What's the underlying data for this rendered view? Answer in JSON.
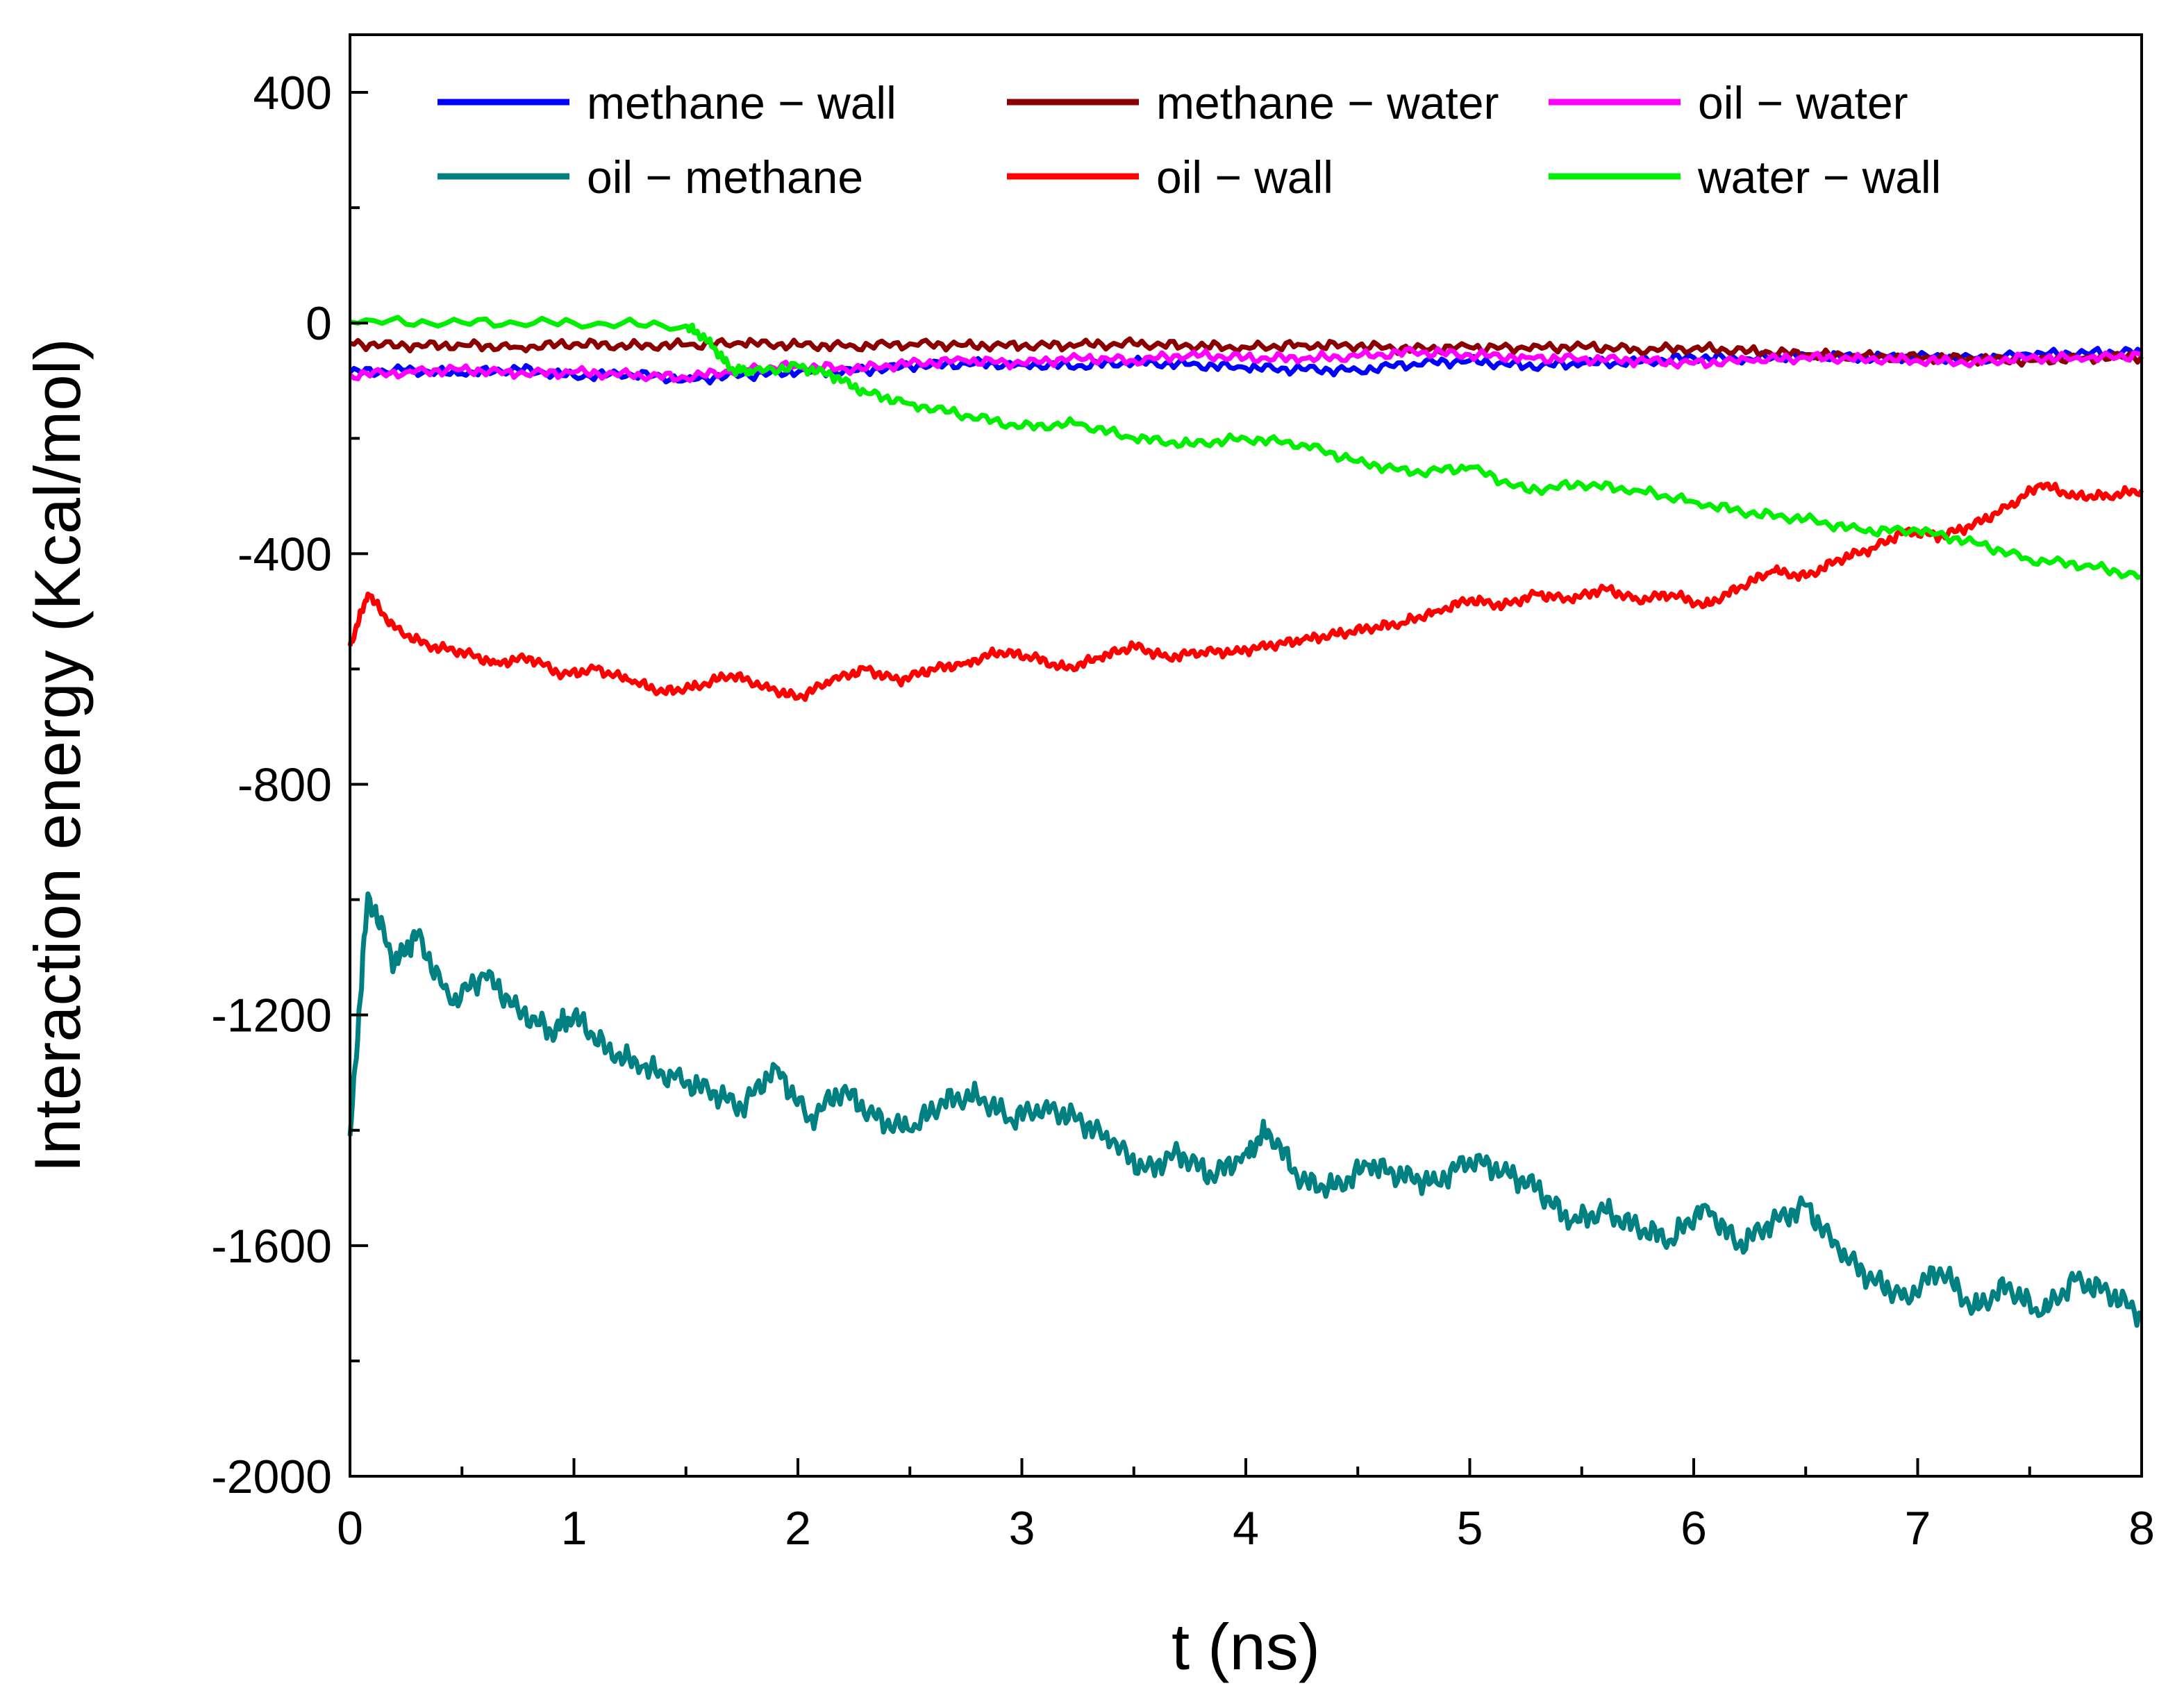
{
  "chart_data": {
    "type": "line",
    "title": "",
    "xlabel": "t (ns)",
    "ylabel": "Interaction energy (Kcal/mol)",
    "xlim": [
      0,
      8
    ],
    "ylim": [
      -2000,
      500
    ],
    "x_ticks": [
      0,
      1,
      2,
      3,
      4,
      5,
      6,
      7,
      8
    ],
    "x_tick_labels": [
      "0",
      "1",
      "2",
      "3",
      "4",
      "5",
      "6",
      "7",
      "8"
    ],
    "y_ticks": [
      -2000,
      -1600,
      -1200,
      -800,
      -400,
      0,
      400
    ],
    "y_tick_labels": [
      "-2000",
      "-1600",
      "-1200",
      "-800",
      "-400",
      "0",
      "400"
    ],
    "grid": false,
    "legend_position": "top",
    "series": [
      {
        "name": "methane − wall",
        "color": "#0000ff",
        "x": [
          0,
          0.25,
          0.5,
          0.75,
          1,
          1.25,
          1.5,
          1.75,
          2,
          2.25,
          2.5,
          2.75,
          3,
          3.25,
          3.5,
          3.75,
          4,
          4.25,
          4.5,
          4.75,
          5,
          5.25,
          5.5,
          5.75,
          6,
          6.25,
          6.5,
          6.75,
          7,
          7.25,
          7.5,
          7.75,
          8
        ],
        "values": [
          -85,
          -82,
          -88,
          -80,
          -92,
          -88,
          -98,
          -90,
          -85,
          -83,
          -75,
          -70,
          -72,
          -74,
          -68,
          -72,
          -78,
          -80,
          -82,
          -70,
          -65,
          -75,
          -70,
          -68,
          -60,
          -62,
          -55,
          -60,
          -58,
          -62,
          -55,
          -52,
          -50
        ]
      },
      {
        "name": "oil − methane",
        "color": "#008080",
        "x": [
          0,
          0.08,
          0.2,
          0.3,
          0.45,
          0.6,
          0.75,
          0.9,
          1,
          1.15,
          1.3,
          1.45,
          1.6,
          1.75,
          1.9,
          2.05,
          2.2,
          2.35,
          2.5,
          2.65,
          2.8,
          2.95,
          3.1,
          3.25,
          3.4,
          3.55,
          3.7,
          3.85,
          4,
          4.1,
          4.25,
          4.4,
          4.55,
          4.7,
          4.85,
          5,
          5.15,
          5.3,
          5.45,
          5.6,
          5.75,
          5.9,
          6.05,
          6.2,
          6.35,
          6.5,
          6.65,
          6.8,
          6.95,
          7.1,
          7.25,
          7.4,
          7.55,
          7.7,
          7.85,
          8
        ],
        "values": [
          -1410,
          -990,
          -1110,
          -1060,
          -1180,
          -1130,
          -1190,
          -1230,
          -1200,
          -1260,
          -1290,
          -1310,
          -1330,
          -1360,
          -1290,
          -1380,
          -1330,
          -1380,
          -1400,
          -1350,
          -1340,
          -1380,
          -1360,
          -1380,
          -1420,
          -1470,
          -1440,
          -1480,
          -1440,
          -1400,
          -1490,
          -1500,
          -1460,
          -1480,
          -1490,
          -1450,
          -1470,
          -1500,
          -1560,
          -1540,
          -1570,
          -1590,
          -1530,
          -1600,
          -1560,
          -1530,
          -1610,
          -1660,
          -1690,
          -1640,
          -1710,
          -1670,
          -1720,
          -1660,
          -1680,
          -1720
        ]
      },
      {
        "name": "methane − water",
        "color": "#8b0000",
        "x": [
          0,
          0.25,
          0.5,
          0.75,
          1,
          1.25,
          1.5,
          1.75,
          2,
          2.25,
          2.5,
          2.75,
          3,
          3.25,
          3.5,
          3.75,
          4,
          4.25,
          4.5,
          4.75,
          5,
          5.25,
          5.5,
          5.75,
          6,
          6.25,
          6.5,
          6.75,
          7,
          7.25,
          7.5,
          7.75,
          8
        ],
        "values": [
          -35,
          -40,
          -38,
          -42,
          -36,
          -40,
          -38,
          -35,
          -38,
          -40,
          -36,
          -38,
          -40,
          -38,
          -36,
          -40,
          -42,
          -38,
          -40,
          -45,
          -42,
          -44,
          -40,
          -46,
          -44,
          -48,
          -55,
          -58,
          -60,
          -62,
          -65,
          -60,
          -58
        ]
      },
      {
        "name": "oil − wall",
        "color": "#ff0000",
        "x": [
          0,
          0.08,
          0.2,
          0.35,
          0.5,
          0.65,
          0.8,
          0.95,
          1.1,
          1.25,
          1.4,
          1.55,
          1.7,
          1.85,
          2,
          2.15,
          2.3,
          2.45,
          2.6,
          2.75,
          2.9,
          3.05,
          3.2,
          3.35,
          3.5,
          3.65,
          3.8,
          3.95,
          4.1,
          4.25,
          4.4,
          4.55,
          4.7,
          4.85,
          5,
          5.15,
          5.3,
          5.45,
          5.6,
          5.75,
          5.9,
          6.05,
          6.2,
          6.35,
          6.5,
          6.65,
          6.8,
          6.95,
          7.1,
          7.25,
          7.4,
          7.55,
          7.7,
          7.85,
          8
        ],
        "values": [
          -560,
          -470,
          -530,
          -560,
          -570,
          -590,
          -580,
          -610,
          -600,
          -620,
          -640,
          -630,
          -610,
          -630,
          -650,
          -620,
          -600,
          -620,
          -600,
          -590,
          -570,
          -580,
          -600,
          -580,
          -560,
          -580,
          -570,
          -570,
          -560,
          -550,
          -540,
          -530,
          -520,
          -500,
          -480,
          -490,
          -470,
          -480,
          -460,
          -480,
          -470,
          -490,
          -460,
          -430,
          -440,
          -410,
          -390,
          -360,
          -370,
          -350,
          -320,
          -280,
          -300,
          -300,
          -290
        ]
      },
      {
        "name": "oil − water",
        "color": "#ff00ff",
        "x": [
          0,
          0.25,
          0.5,
          0.75,
          1,
          1.25,
          1.5,
          1.75,
          2,
          2.25,
          2.5,
          2.75,
          3,
          3.25,
          3.5,
          3.75,
          4,
          4.25,
          4.5,
          4.75,
          5,
          5.25,
          5.5,
          5.75,
          6,
          6.25,
          6.5,
          6.75,
          7,
          7.25,
          7.5,
          7.75,
          8
        ],
        "values": [
          -90,
          -85,
          -80,
          -88,
          -85,
          -90,
          -95,
          -80,
          -75,
          -80,
          -70,
          -65,
          -70,
          -60,
          -65,
          -55,
          -60,
          -62,
          -58,
          -50,
          -55,
          -60,
          -62,
          -65,
          -70,
          -65,
          -60,
          -62,
          -65,
          -68,
          -60,
          -62,
          -55
        ]
      },
      {
        "name": "water − wall",
        "color": "#00ee00",
        "x": [
          0,
          0.5,
          1,
          1.5,
          1.6,
          1.7,
          1.8,
          2,
          2.15,
          2.3,
          2.5,
          2.75,
          3,
          3.25,
          3.5,
          3.75,
          4,
          4.25,
          4.5,
          4.75,
          5,
          5.25,
          5.5,
          5.75,
          6,
          6.25,
          6.5,
          6.75,
          7,
          7.25,
          7.5,
          7.75,
          8
        ],
        "values": [
          2,
          1,
          0,
          -5,
          -30,
          -80,
          -85,
          -75,
          -90,
          -120,
          -140,
          -160,
          -180,
          -175,
          -200,
          -210,
          -200,
          -210,
          -240,
          -260,
          -250,
          -290,
          -280,
          -290,
          -310,
          -330,
          -340,
          -360,
          -360,
          -380,
          -410,
          -420,
          -440
        ]
      }
    ]
  }
}
